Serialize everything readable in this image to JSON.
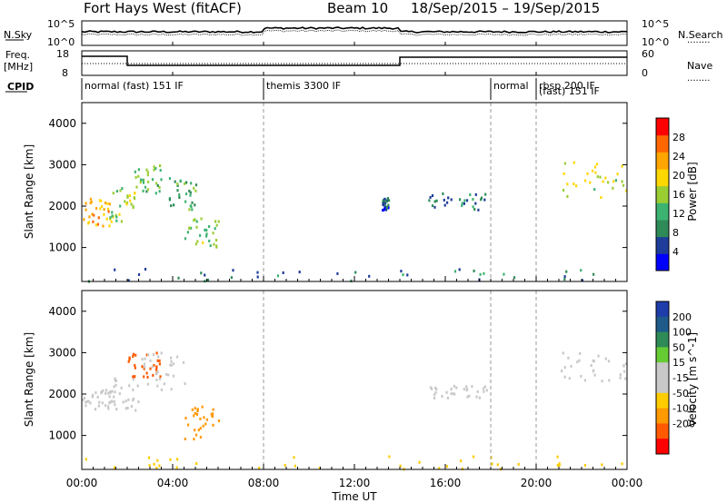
{
  "header": {
    "station": "Fort Hays West (fitACF)",
    "beam": "Beam 10",
    "date_range": "18/Sep/2015 – 19/Sep/2015"
  },
  "side_labels": {
    "nsky": "N.Sky",
    "nsearch": "N.Search",
    "freq": "Freq.",
    "freq_unit": "[MHz]",
    "nave": "Nave",
    "cpid": "CPID",
    "dots": "........"
  },
  "noise_panel": {
    "left_ticks": [
      "10^5",
      "10^0"
    ],
    "right_ticks": [
      "10^5",
      "10^0"
    ]
  },
  "freq_panel": {
    "left_ticks": [
      "18",
      "8"
    ],
    "right_ticks": [
      "60",
      "0"
    ]
  },
  "cpid_labels": [
    {
      "text": "normal (fast) 151 IF",
      "start_hour": 0
    },
    {
      "text": "themis 3300 IF",
      "start_hour": 8.0
    },
    {
      "text": "normal",
      "start_hour": 18.0
    },
    {
      "text": "rbsp 200 IF",
      "start_hour": 20.0
    },
    {
      "text": "(fast) 151 IF",
      "start_hour": 20.0
    }
  ],
  "time_axis": {
    "label": "Time UT",
    "ticks": [
      "00:00",
      "04:00",
      "08:00",
      "12:00",
      "16:00",
      "20:00",
      "00:00"
    ]
  },
  "colors": {
    "power": [
      "#0000ff",
      "#1e3c9a",
      "#2e8b57",
      "#3cb371",
      "#9acd32",
      "#ffd700",
      "#ffa500",
      "#ff6600",
      "#ff0000"
    ],
    "velocity": [
      "#ff0000",
      "#ff5a00",
      "#ff9900",
      "#ffcc00",
      "#c8c8c8",
      "#c8c8c8",
      "#66cc33",
      "#2e8b57",
      "#1e5a8a",
      "#1e3caa"
    ]
  },
  "chart_data": [
    {
      "type": "heatmap",
      "name": "power",
      "xlabel": "",
      "ylabel": "Slant Range [km]",
      "xlim": [
        0,
        24
      ],
      "ylim": [
        180,
        4500
      ],
      "yticks": [
        1000,
        2000,
        3000,
        4000
      ],
      "colorbar": {
        "label": "Power [dB]",
        "range": [
          0,
          32
        ],
        "ticks": [
          4,
          8,
          12,
          16,
          20,
          24,
          28
        ]
      },
      "dashed_lines_hours": [
        8.0,
        18.0,
        20.0
      ],
      "regions": [
        {
          "hours": [
            0,
            1.2
          ],
          "range_km": [
            1500,
            2200
          ],
          "level": 22
        },
        {
          "hours": [
            1.2,
            2.3
          ],
          "range_km": [
            1600,
            2500
          ],
          "level": 16
        },
        {
          "hours": [
            2.3,
            3.5
          ],
          "range_km": [
            2300,
            3000
          ],
          "level": 14
        },
        {
          "hours": [
            3.8,
            5.0
          ],
          "range_km": [
            1900,
            2700
          ],
          "level": 12
        },
        {
          "hours": [
            4.5,
            6.0
          ],
          "range_km": [
            1000,
            1700
          ],
          "level": 14
        },
        {
          "hours": [
            0,
            24
          ],
          "range_km": [
            180,
            500
          ],
          "level": 8
        },
        {
          "hours": [
            13.2,
            13.5
          ],
          "range_km": [
            1900,
            2200
          ],
          "level": 6
        },
        {
          "hours": [
            15.2,
            17.8
          ],
          "range_km": [
            1900,
            2300
          ],
          "level": 8
        },
        {
          "hours": [
            21.0,
            24
          ],
          "range_km": [
            2200,
            3100
          ],
          "level": 18
        }
      ]
    },
    {
      "type": "heatmap",
      "name": "velocity",
      "xlabel": "Time UT",
      "ylabel": "Slant Range [km]",
      "xlim": [
        0,
        24
      ],
      "ylim": [
        180,
        4500
      ],
      "yticks": [
        1000,
        2000,
        3000,
        4000
      ],
      "colorbar": {
        "label": "Velocity [m s^-1]",
        "tick_labels": [
          "-200",
          "-100",
          "-50",
          "-15",
          "15",
          "50",
          "100",
          "200"
        ]
      },
      "dashed_lines_hours": [
        8.0,
        18.0,
        20.0
      ],
      "regions": [
        {
          "hours": [
            0,
            1.5
          ],
          "range_km": [
            1600,
            2100
          ],
          "level": 0
        },
        {
          "hours": [
            1.0,
            2.5
          ],
          "range_km": [
            1600,
            2400
          ],
          "level": 0
        },
        {
          "hours": [
            2.0,
            3.5
          ],
          "range_km": [
            2400,
            3000
          ],
          "level": -150
        },
        {
          "hours": [
            2.5,
            4.5
          ],
          "range_km": [
            2100,
            3000
          ],
          "level": 0
        },
        {
          "hours": [
            4.5,
            6.0
          ],
          "range_km": [
            900,
            1700
          ],
          "level": -60
        },
        {
          "hours": [
            0,
            24
          ],
          "range_km": [
            180,
            500
          ],
          "level": -40
        },
        {
          "hours": [
            15.2,
            17.8
          ],
          "range_km": [
            1900,
            2200
          ],
          "level": 0
        },
        {
          "hours": [
            21.0,
            24
          ],
          "range_km": [
            2300,
            3000
          ],
          "level": 0
        }
      ]
    }
  ]
}
